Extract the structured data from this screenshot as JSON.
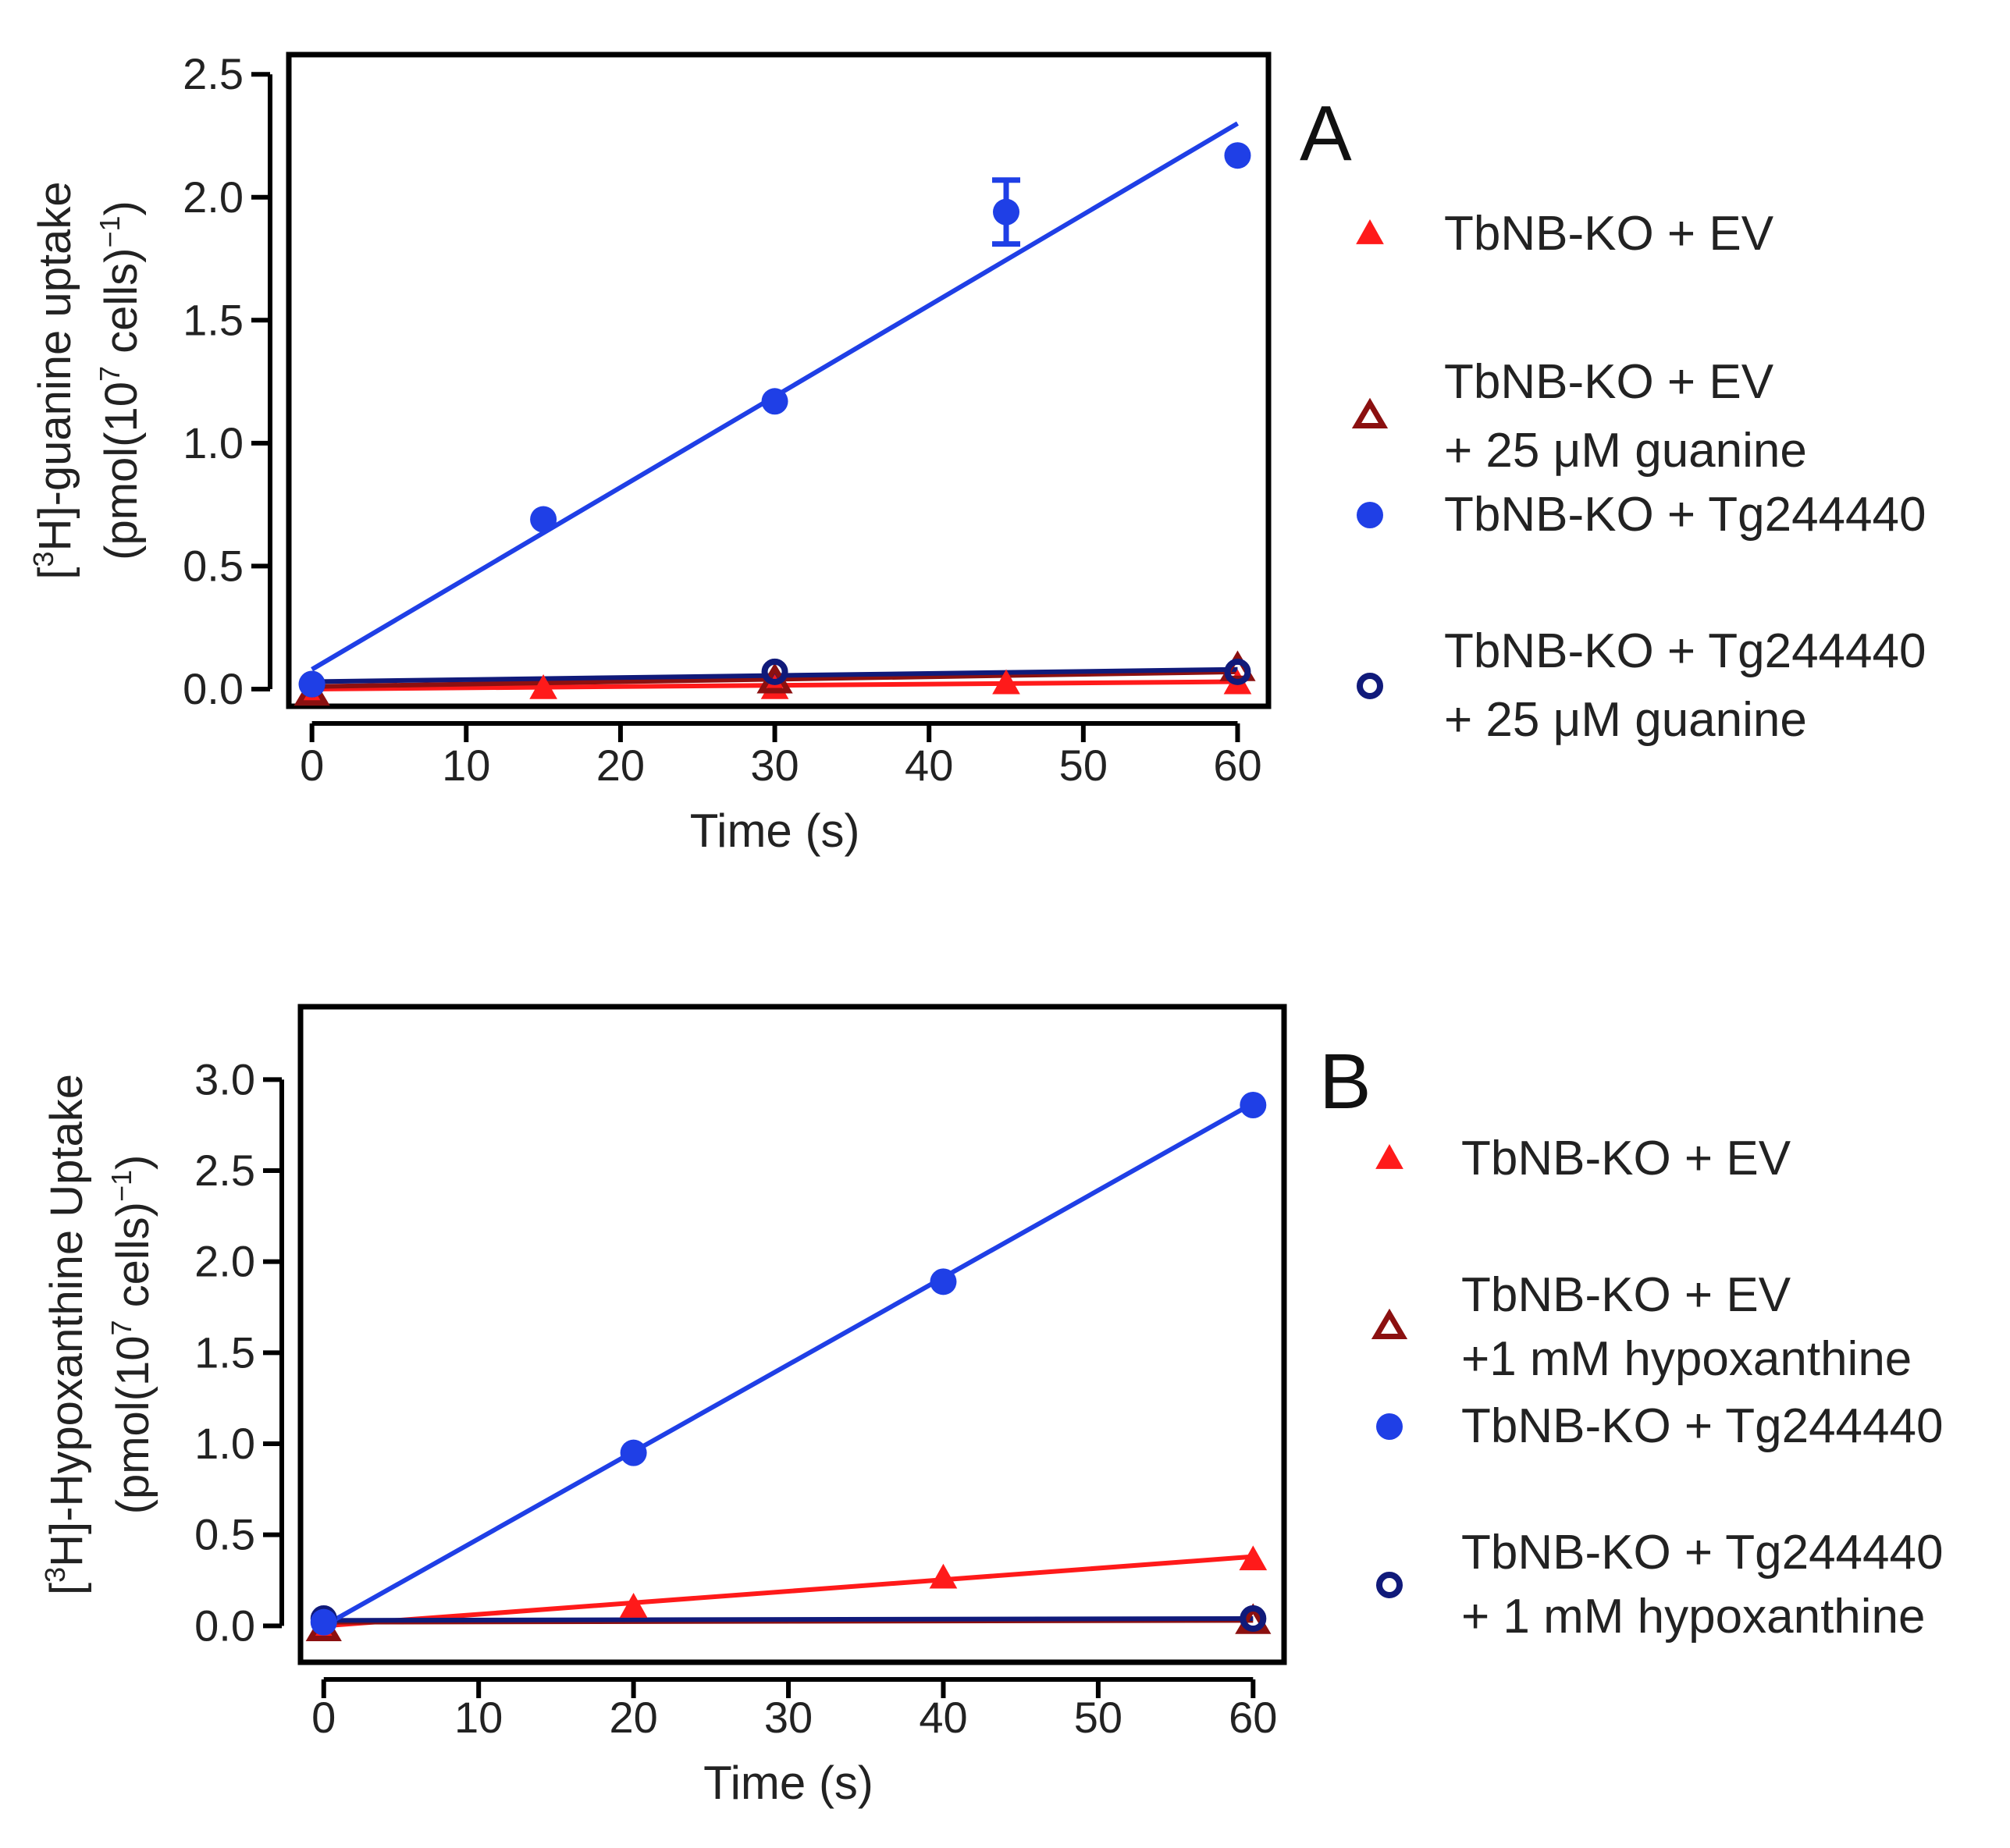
{
  "colors": {
    "ev": "#ff1a1a",
    "ev_inhibited": "#8b1010",
    "tg": "#1f3fe6",
    "tg_inhibited": "#101a7a",
    "axis": "#000000"
  },
  "chart_data": [
    {
      "type": "scatter",
      "panel_letter": "A",
      "xlabel": "Time (s)",
      "ylabel_line1_pre": "[",
      "ylabel_line1_sup": "3",
      "ylabel_line1_post": "H]-guanine uptake",
      "ylabel_line2_pre": "(pmol(10",
      "ylabel_line2_sup": "7",
      "ylabel_line2_mid": " cells)",
      "ylabel_line2_sup2": "−1",
      "ylabel_line2_post": ")",
      "xlim": [
        -1.5,
        62
      ],
      "ylim": [
        -0.07,
        2.58
      ],
      "xticks": [
        0,
        10,
        20,
        30,
        40,
        50,
        60
      ],
      "yticks": [
        0.0,
        0.5,
        1.0,
        1.5,
        2.0,
        2.5
      ],
      "ytick_labels": [
        "0.0",
        "0.5",
        "1.0",
        "1.5",
        "2.0",
        "2.5"
      ],
      "series": [
        {
          "key": "ev",
          "marker": "triangle-filled",
          "legend": [
            "TbNB-KO + EV"
          ],
          "x": [
            0,
            15,
            30,
            45,
            60
          ],
          "y": [
            -0.02,
            0.0,
            0.0,
            0.02,
            0.02
          ],
          "fit": [
            [
              0,
              0.0
            ],
            [
              60,
              0.03
            ]
          ]
        },
        {
          "key": "ev_inhibited",
          "marker": "triangle-open",
          "legend": [
            "TbNB-KO + EV",
            "+ 25 μM guanine"
          ],
          "x": [
            0,
            30,
            60
          ],
          "y": [
            -0.02,
            0.03,
            0.08
          ],
          "fit": [
            [
              0,
              0.01
            ],
            [
              60,
              0.07
            ]
          ]
        },
        {
          "key": "tg",
          "marker": "circle-filled",
          "legend": [
            "TbNB-KO + Tg244440"
          ],
          "x": [
            0,
            15,
            30,
            45,
            60
          ],
          "y": [
            0.02,
            0.69,
            1.17,
            1.94,
            2.17
          ],
          "err": [
            0,
            0,
            0,
            0.13,
            0
          ],
          "fit": [
            [
              0,
              0.08
            ],
            [
              60,
              2.3
            ]
          ]
        },
        {
          "key": "tg_inhibited",
          "marker": "circle-open",
          "legend": [
            "TbNB-KO + Tg244440",
            "+ 25 μM guanine"
          ],
          "x": [
            0,
            30,
            60
          ],
          "y": [
            0.02,
            0.07,
            0.07
          ],
          "fit": [
            [
              0,
              0.03
            ],
            [
              60,
              0.08
            ]
          ]
        }
      ]
    },
    {
      "type": "scatter",
      "panel_letter": "B",
      "xlabel": "Time (s)",
      "ylabel_line1_pre": "[",
      "ylabel_line1_sup": "3",
      "ylabel_line1_post": "H]-Hypoxanthine Uptake",
      "ylabel_line2_pre": "(pmol(10",
      "ylabel_line2_sup": "7",
      "ylabel_line2_mid": " cells)",
      "ylabel_line2_sup2": "−1",
      "ylabel_line2_post": ")",
      "xlim": [
        -1.5,
        62
      ],
      "ylim": [
        -0.2,
        3.4
      ],
      "xticks": [
        0,
        10,
        20,
        30,
        40,
        50,
        60
      ],
      "yticks": [
        0.0,
        0.5,
        1.0,
        1.5,
        2.0,
        2.5,
        3.0
      ],
      "ytick_labels": [
        "0.0",
        "0.5",
        "1.0",
        "1.5",
        "2.0",
        "2.5",
        "3.0"
      ],
      "series": [
        {
          "key": "ev",
          "marker": "triangle-filled",
          "legend": [
            "TbNB-KO + EV"
          ],
          "x": [
            0,
            20,
            40,
            60
          ],
          "y": [
            -0.02,
            0.1,
            0.26,
            0.36
          ],
          "fit": [
            [
              0,
              0.0
            ],
            [
              60,
              0.38
            ]
          ]
        },
        {
          "key": "ev_inhibited",
          "marker": "triangle-open",
          "legend": [
            "TbNB-KO + EV",
            "+1 mM hypoxanthine"
          ],
          "x": [
            0,
            60
          ],
          "y": [
            -0.02,
            0.02
          ],
          "fit": [
            [
              0,
              0.02
            ],
            [
              60,
              0.03
            ]
          ]
        },
        {
          "key": "tg",
          "marker": "circle-filled",
          "legend": [
            "TbNB-KO + Tg244440"
          ],
          "x": [
            0,
            20,
            40,
            60
          ],
          "y": [
            0.02,
            0.95,
            1.89,
            2.86
          ],
          "fit": [
            [
              0,
              0.0
            ],
            [
              60,
              2.87
            ]
          ]
        },
        {
          "key": "tg_inhibited",
          "marker": "circle-open",
          "legend": [
            "TbNB-KO + Tg244440",
            "+ 1 mM hypoxanthine"
          ],
          "x": [
            0,
            60
          ],
          "y": [
            0.04,
            0.04
          ],
          "fit": [
            [
              0,
              0.03
            ],
            [
              60,
              0.04
            ]
          ]
        }
      ]
    }
  ]
}
